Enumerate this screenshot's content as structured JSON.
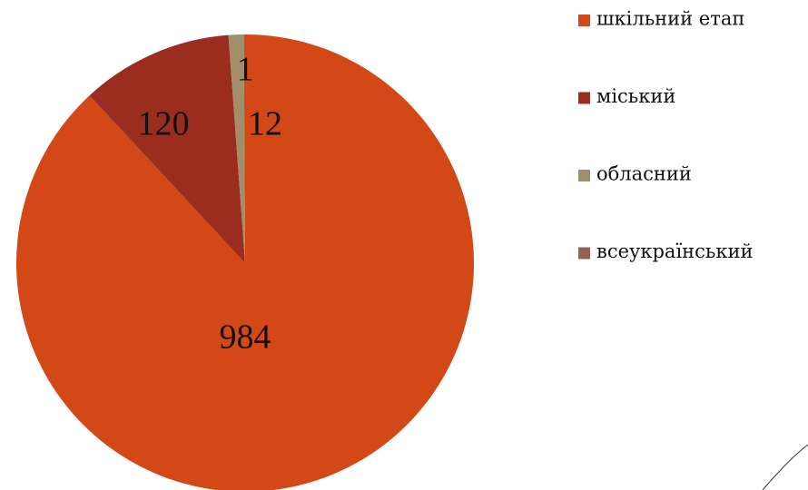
{
  "chart_data": {
    "type": "pie",
    "categories": [
      "шкільний етап",
      "міський",
      "обласний",
      "всеукраїнський"
    ],
    "values": [
      984,
      120,
      12,
      1
    ],
    "colors": [
      "#d34817",
      "#9b2d1f",
      "#a28e6a",
      "#956251"
    ],
    "legend": "right"
  }
}
